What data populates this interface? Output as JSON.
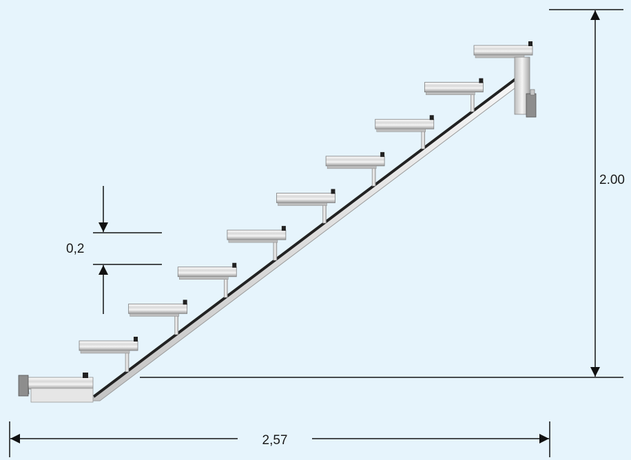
{
  "labels": {
    "total_height": "2.00",
    "total_width": "2,57",
    "step_rise": "0,2"
  },
  "colors": {
    "background": "#e6f4fc",
    "dimension_line": "#111111",
    "aluminium_light": "#f2f2f2",
    "aluminium_mid": "#c9c9c9",
    "aluminium_dark": "#8a8a8a",
    "stringer_edge": "#222222"
  },
  "staircase": {
    "step_count": 9
  }
}
